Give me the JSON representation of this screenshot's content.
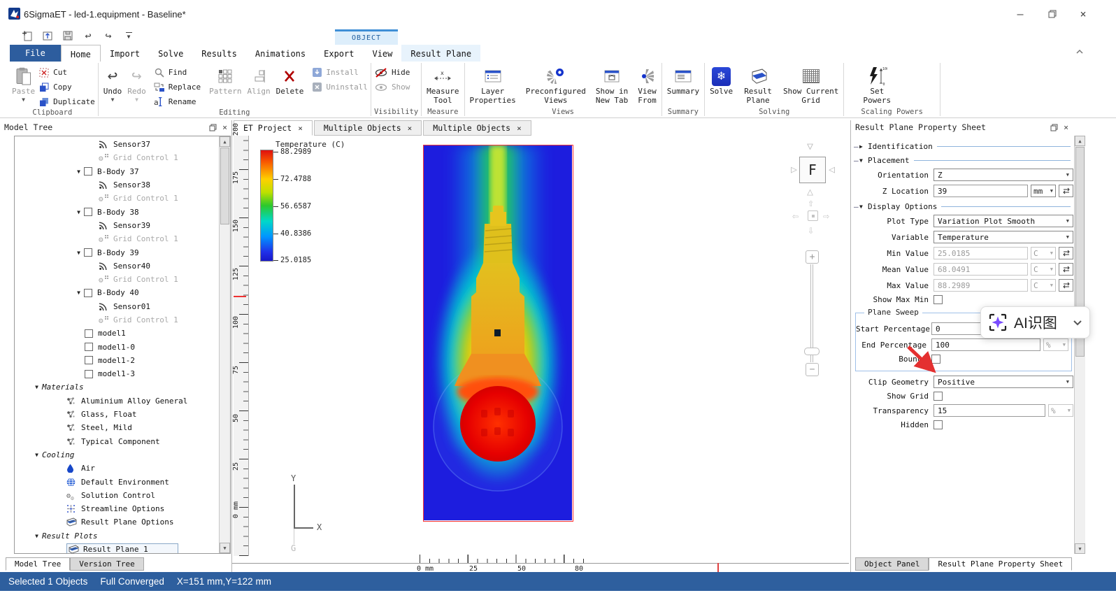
{
  "window": {
    "title": "6SigmaET - led-1.equipment - Baseline*"
  },
  "ribbon": {
    "contextual_label": "OBJECT",
    "tabs": [
      {
        "label": "File"
      },
      {
        "label": "Home"
      },
      {
        "label": "Import"
      },
      {
        "label": "Solve"
      },
      {
        "label": "Results"
      },
      {
        "label": "Animations"
      },
      {
        "label": "Export"
      },
      {
        "label": "View"
      },
      {
        "label": "Result Plane"
      }
    ],
    "buttons": {
      "paste": "Paste",
      "cut": "Cut",
      "copy": "Copy",
      "duplicate": "Duplicate",
      "undo": "Undo",
      "redo": "Redo",
      "find": "Find",
      "replace": "Replace",
      "rename": "Rename",
      "pattern": "Pattern",
      "align": "Align",
      "delete": "Delete",
      "install": "Install",
      "uninstall": "Uninstall",
      "hide": "Hide",
      "show": "Show",
      "measure_tool": "Measure\nTool",
      "layer_properties": "Layer\nProperties",
      "preconfigured_views": "Preconfigured\nViews",
      "show_in_new_tab": "Show in\nNew Tab",
      "view_from": "View\nFrom",
      "summary": "Summary",
      "solve": "Solve",
      "result_plane": "Result\nPlane",
      "show_current_grid": "Show Current\nGrid",
      "set_powers": "Set\nPowers"
    },
    "group_labels": {
      "clipboard": "Clipboard",
      "editing": "Editing",
      "visibility": "Visibility",
      "measure": "Measure",
      "views": "Views",
      "summary": "Summary",
      "solving": "Solving",
      "scaling_powers": "Scaling Powers"
    }
  },
  "model_tree": {
    "title": "Model Tree",
    "items": [
      {
        "icon": "sensor",
        "label": "Sensor37",
        "indent": 120
      },
      {
        "icon": "gridcontrol",
        "label": "Grid Control 1",
        "indent": 120,
        "disabled": true
      },
      {
        "expander": true,
        "checkbox": true,
        "label": "B-Body 37",
        "indent": 84
      },
      {
        "icon": "sensor",
        "label": "Sensor38",
        "indent": 120
      },
      {
        "icon": "gridcontrol",
        "label": "Grid Control 1",
        "indent": 120,
        "disabled": true
      },
      {
        "expander": true,
        "checkbox": true,
        "label": "B-Body 38",
        "indent": 84
      },
      {
        "icon": "sensor",
        "label": "Sensor39",
        "indent": 120
      },
      {
        "icon": "gridcontrol",
        "label": "Grid Control 1",
        "indent": 120,
        "disabled": true
      },
      {
        "expander": true,
        "checkbox": true,
        "label": "B-Body 39",
        "indent": 84
      },
      {
        "icon": "sensor",
        "label": "Sensor40",
        "indent": 120
      },
      {
        "icon": "gridcontrol",
        "label": "Grid Control 1",
        "indent": 120,
        "disabled": true
      },
      {
        "expander": true,
        "checkbox": true,
        "label": "B-Body 40",
        "indent": 84
      },
      {
        "icon": "sensor",
        "label": "Sensor01",
        "indent": 120
      },
      {
        "icon": "gridcontrol",
        "label": "Grid Control 1",
        "indent": 120,
        "disabled": true
      },
      {
        "checkbox": true,
        "label": "model1",
        "indent": 100
      },
      {
        "checkbox": true,
        "label": "model1-0",
        "indent": 100
      },
      {
        "checkbox": true,
        "label": "model1-2",
        "indent": 100
      },
      {
        "checkbox": true,
        "label": "model1-3",
        "indent": 100
      },
      {
        "expander": true,
        "label": "Materials",
        "indent": 24,
        "italic": true
      },
      {
        "icon": "material",
        "label": "Aluminium Alloy General",
        "indent": 74
      },
      {
        "icon": "material",
        "label": "Glass, Float",
        "indent": 74
      },
      {
        "icon": "material",
        "label": "Steel, Mild",
        "indent": 74
      },
      {
        "icon": "material",
        "label": "Typical Component",
        "indent": 74
      },
      {
        "expander": true,
        "label": "Cooling",
        "indent": 24,
        "italic": true
      },
      {
        "icon": "air",
        "label": "Air",
        "indent": 74
      },
      {
        "icon": "environment",
        "label": "Default Environment",
        "indent": 74
      },
      {
        "icon": "solution",
        "label": "Solution Control",
        "indent": 74
      },
      {
        "icon": "streamline",
        "label": "Streamline Options",
        "indent": 74
      },
      {
        "icon": "resultplane",
        "label": "Result Plane Options",
        "indent": 74
      },
      {
        "expander": true,
        "label": "Result Plots",
        "indent": 24,
        "italic": true
      },
      {
        "icon": "resultplane",
        "label": "Result Plane 1",
        "indent": 74,
        "selected": true
      }
    ],
    "tabs": [
      {
        "label": "Model Tree"
      },
      {
        "label": "Version Tree"
      }
    ]
  },
  "viewport": {
    "tabs": [
      {
        "label": "ET Project"
      },
      {
        "label": "Multiple Objects"
      },
      {
        "label": "Multiple Objects"
      }
    ],
    "legend": {
      "title": "Temperature (C)",
      "values": [
        "88.2989",
        "72.4788",
        "56.6587",
        "40.8386",
        "25.0185"
      ]
    },
    "v_ruler": [
      "200",
      "175",
      "150",
      "125",
      "100",
      "75",
      "50",
      "25",
      "0 mm"
    ],
    "h_ruler": [
      "0 mm",
      "25",
      "50",
      "80"
    ],
    "axis": {
      "y": "Y",
      "x": "X",
      "g": "G"
    },
    "nav": {
      "face": "F"
    }
  },
  "property_sheet": {
    "title": "Result Plane Property Sheet",
    "sections": {
      "identification": "Identification",
      "placement": "Placement",
      "display_options": "Display Options"
    },
    "fields": {
      "orientation": {
        "label": "Orientation",
        "value": "Z"
      },
      "z_location": {
        "label": "Z Location",
        "value": "39",
        "unit": "mm"
      },
      "plot_type": {
        "label": "Plot Type",
        "value": "Variation Plot Smooth"
      },
      "variable": {
        "label": "Variable",
        "value": "Temperature"
      },
      "min_value": {
        "label": "Min Value",
        "value": "25.0185",
        "unit": "C"
      },
      "mean_value": {
        "label": "Mean Value",
        "value": "68.0491",
        "unit": "C"
      },
      "max_value": {
        "label": "Max Value",
        "value": "88.2989",
        "unit": "C"
      },
      "show_max_min": {
        "label": "Show Max Min"
      },
      "plane_sweep": {
        "label": "Plane Sweep"
      },
      "start_percentage": {
        "label": "Start Percentage",
        "value": "0"
      },
      "end_percentage": {
        "label": "End Percentage",
        "value": "100",
        "unit": "%"
      },
      "bounce": {
        "label": "Bounce"
      },
      "clip_geometry": {
        "label": "Clip Geometry",
        "value": "Positive"
      },
      "show_grid": {
        "label": "Show Grid"
      },
      "transparency": {
        "label": "Transparency",
        "value": "15",
        "unit": "%"
      },
      "hidden": {
        "label": "Hidden"
      }
    },
    "tabs": [
      {
        "label": "Object Panel"
      },
      {
        "label": "Result Plane Property Sheet"
      }
    ]
  },
  "overlay": {
    "ai_label": "AI识图"
  },
  "status_bar": {
    "selection": "Selected 1 Objects",
    "convergence": "Full Converged",
    "coords": "X=151 mm,Y=122 mm"
  }
}
